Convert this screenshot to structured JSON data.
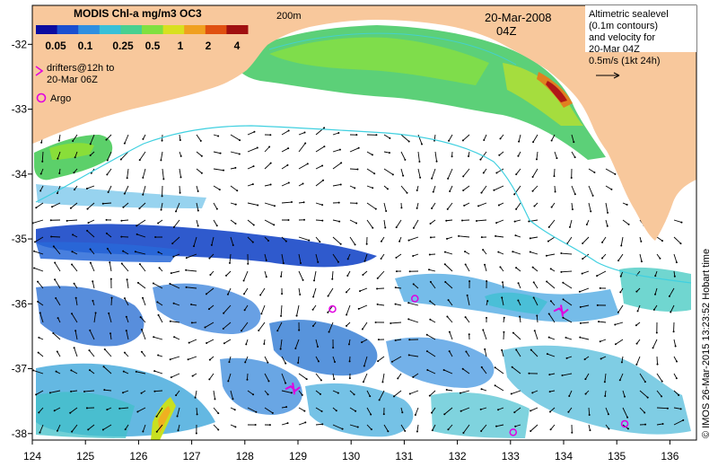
{
  "title_block": {
    "product": "MODIS Chl-a mg/m3 OC3",
    "date": "20-Mar-2008",
    "time": "04Z",
    "isobath_label": "200m"
  },
  "colorbar": {
    "ticks": [
      "0.05",
      "0.1",
      "0.25",
      "0.5",
      "1",
      "2",
      "4"
    ],
    "colors": [
      "#0c0ca0",
      "#1a4fd0",
      "#2f8fe0",
      "#38c0d8",
      "#48d090",
      "#80e040",
      "#d8e020",
      "#f0a020",
      "#e05010",
      "#a01010"
    ]
  },
  "legend": {
    "drifters_line1": "drifters@12h to",
    "drifters_line2": "20-Mar 06Z",
    "argo_label": "Argo",
    "drifter_color": "#e000e0"
  },
  "altimetry_note": {
    "line1": "Altimetric sealevel",
    "line2": "(0.1m contours)",
    "line3": "and velocity for",
    "line4": "20-Mar 04Z",
    "line5": "0.5m/s (1kt 24h)"
  },
  "credit": "© IMOS 26-Mar-2015 13:23:52 Hobart time",
  "axes": {
    "x_ticks": [
      "124",
      "125",
      "126",
      "127",
      "128",
      "129",
      "130",
      "131",
      "132",
      "133",
      "134",
      "135",
      "136"
    ],
    "y_ticks": [
      "-32",
      "-33",
      "-34",
      "-35",
      "-36",
      "-37",
      "-38"
    ],
    "lon_range": [
      124,
      136.5
    ],
    "lat_range": [
      -38.1,
      -31.4
    ]
  },
  "colors": {
    "land": "#f8c89c",
    "ocean": "#ffffff",
    "isobath": "#40d0e0"
  },
  "argo_floats": [
    {
      "lon": 129.65,
      "lat": -36.08
    },
    {
      "lon": 131.2,
      "lat": -35.92
    },
    {
      "lon": 133.05,
      "lat": -37.98
    },
    {
      "lon": 135.15,
      "lat": -37.85
    }
  ],
  "drifters": [
    {
      "lon": 128.9,
      "lat": -37.3
    },
    {
      "lon": 133.95,
      "lat": -36.1
    }
  ]
}
